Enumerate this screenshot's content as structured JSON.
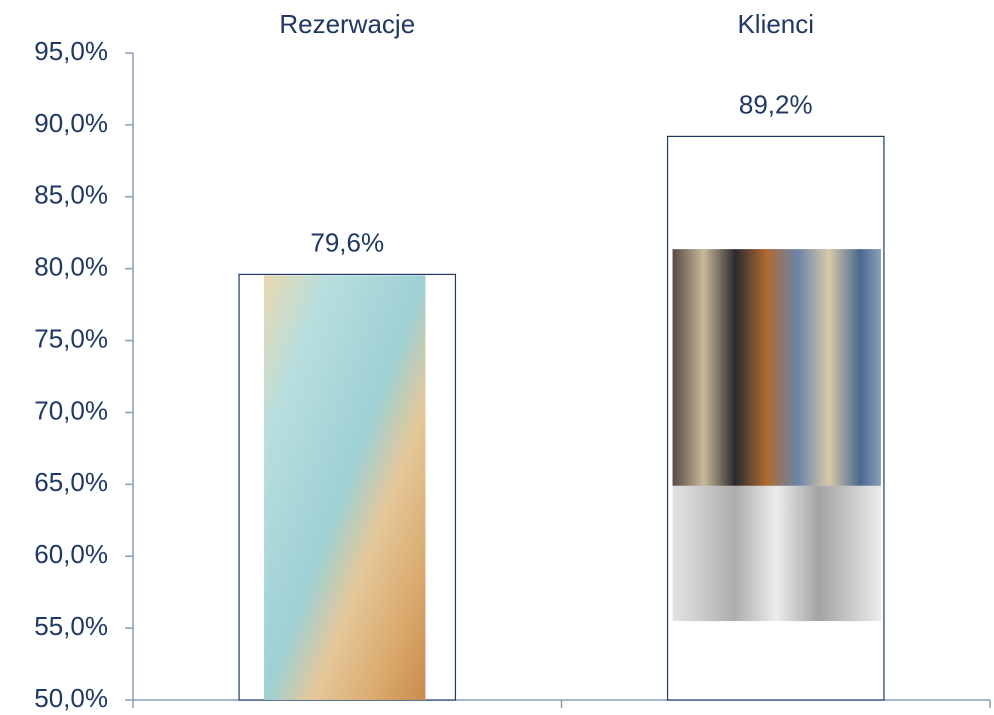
{
  "chart_data": {
    "type": "bar",
    "categories": [
      "Rezerwacje",
      "Klienci"
    ],
    "values": [
      79.6,
      89.2
    ],
    "value_labels": [
      "79,6%",
      "89,2%"
    ],
    "color": "#1f3864",
    "ylim": [
      50,
      95
    ],
    "yticks": [
      {
        "value": 50,
        "label": "50,0%"
      },
      {
        "value": 55,
        "label": "55,0%"
      },
      {
        "value": 60,
        "label": "60,0%"
      },
      {
        "value": 65,
        "label": "65,0%"
      },
      {
        "value": 70,
        "label": "70,0%"
      },
      {
        "value": 75,
        "label": "75,0%"
      },
      {
        "value": 80,
        "label": "80,0%"
      },
      {
        "value": 85,
        "label": "85,0%"
      },
      {
        "value": 90,
        "label": "90,0%"
      },
      {
        "value": 95,
        "label": "95,0%"
      }
    ],
    "grid": false
  }
}
